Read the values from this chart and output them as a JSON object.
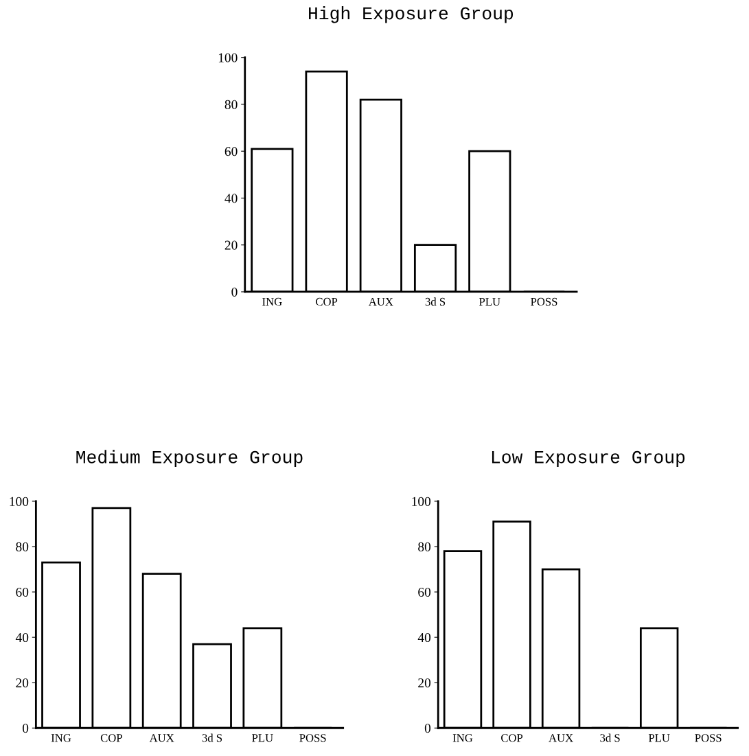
{
  "chart_data": [
    {
      "type": "bar",
      "title": "High Exposure Group",
      "categories": [
        "ING",
        "COP",
        "AUX",
        "3d S",
        "PLU",
        "POSS"
      ],
      "values": [
        61,
        94,
        82,
        20,
        60,
        0
      ],
      "color": "#ffffff",
      "ylim": [
        0,
        100
      ],
      "yticks": [
        0,
        20,
        40,
        60,
        80,
        100
      ],
      "grid": false
    },
    {
      "type": "bar",
      "title": "Medium Exposure Group",
      "categories": [
        "ING",
        "COP",
        "AUX",
        "3d S",
        "PLU",
        "POSS"
      ],
      "values": [
        73,
        97,
        68,
        37,
        44,
        0
      ],
      "color": "#ffffff",
      "ylim": [
        0,
        100
      ],
      "yticks": [
        0,
        20,
        40,
        60,
        80,
        100
      ],
      "grid": false
    },
    {
      "type": "bar",
      "title": "Low Exposure Group",
      "categories": [
        "ING",
        "COP",
        "AUX",
        "3d S",
        "PLU",
        "POSS"
      ],
      "values": [
        78,
        91,
        70,
        0,
        44,
        0
      ],
      "color": "#ffffff",
      "ylim": [
        0,
        100
      ],
      "yticks": [
        0,
        20,
        40,
        60,
        80,
        100
      ],
      "grid": false
    }
  ]
}
